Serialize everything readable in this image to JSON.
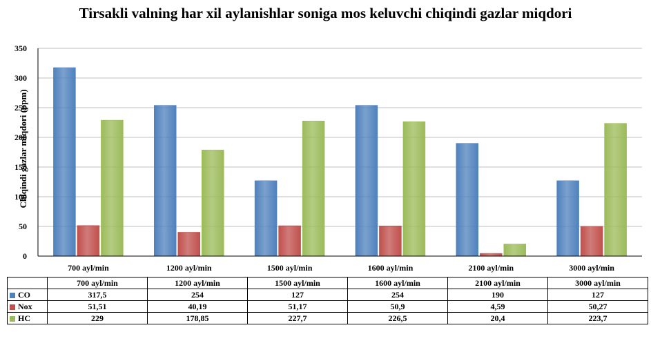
{
  "chart_data": {
    "type": "bar",
    "title": "Tirsakli valning har xil aylanishlar soniga mos keluvchi chiqindi gazlar miqdori",
    "ylabel": "Chiqindi gazlar miqdori (ppm)",
    "xlabel": "",
    "ylim": [
      0,
      350
    ],
    "yticks": [
      0,
      50,
      100,
      150,
      200,
      250,
      300,
      350
    ],
    "grid": true,
    "categories": [
      "700 ayl/min",
      "1200 ayl/min",
      "1500 ayl/min",
      "1600 ayl/min",
      "2100 ayl/min",
      "3000 ayl/min"
    ],
    "series": [
      {
        "name": "CO",
        "color": "#4F81BD",
        "values": [
          317.5,
          254,
          127,
          254,
          190,
          127
        ],
        "labels": [
          "317,5",
          "254",
          "127",
          "254",
          "190",
          "127"
        ]
      },
      {
        "name": "Nox",
        "color": "#C0504D",
        "values": [
          51.51,
          40.19,
          51.17,
          50.9,
          4.59,
          50.27
        ],
        "labels": [
          "51,51",
          "40,19",
          "51,17",
          "50,9",
          "4,59",
          "50,27"
        ]
      },
      {
        "name": "HC",
        "color": "#9BBB59",
        "values": [
          229,
          178.85,
          227.7,
          226.5,
          20.4,
          223.7
        ],
        "labels": [
          "229",
          "178,85",
          "227,7",
          "226,5",
          "20,4",
          "223,7"
        ]
      }
    ],
    "data_table": true
  }
}
